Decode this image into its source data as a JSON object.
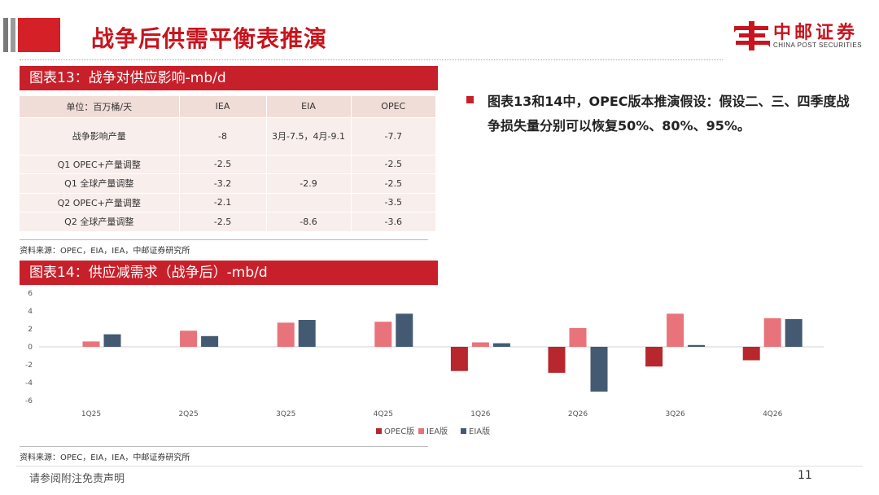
{
  "header": {
    "title": "战争后供需平衡表推演",
    "logo_cn": "中邮证券",
    "logo_en": "CHINA POST SECURITIES"
  },
  "table13": {
    "title": "图表13：战争对供应影响-mb/d",
    "columns": [
      "单位：百万桶/天",
      "IEA",
      "EIA",
      "OPEC"
    ],
    "rows": [
      [
        "战争影响产量",
        "-8",
        "3月-7.5，4月-9.1",
        "-7.7"
      ],
      [
        "Q1 OPEC+产量调整",
        "-2.5",
        "",
        "-2.5"
      ],
      [
        "Q1 全球产量调整",
        "-3.2",
        "-2.9",
        "-2.5"
      ],
      [
        "Q2 OPEC+产量调整",
        "-2.1",
        "",
        "-3.5"
      ],
      [
        "Q2 全球产量调整",
        "-2.5",
        "-8.6",
        "-3.6"
      ]
    ],
    "source": "资料来源：OPEC，EIA，IEA，中邮证券研究所"
  },
  "bullet": {
    "text": "图表13和14中，OPEC版本推演假设：假设二、三、四季度战争损失量分别可以恢复50%、80%、95%。"
  },
  "chart14": {
    "title": "图表14：供应减需求（战争后）-mb/d",
    "source": "资料来源：OPEC，EIA，IEA，中邮证券研究所"
  },
  "chart_data": {
    "type": "bar",
    "title": "图表14：供应减需求（战争后）-mb/d",
    "categories": [
      "1Q25",
      "2Q25",
      "3Q25",
      "4Q25",
      "1Q26",
      "2Q26",
      "3Q26",
      "4Q26"
    ],
    "series": [
      {
        "name": "OPEC版",
        "color": "#b8262e",
        "values": [
          null,
          null,
          null,
          null,
          -2.7,
          -2.9,
          -2.2,
          -1.5
        ]
      },
      {
        "name": "IEA版",
        "color": "#e8737a",
        "values": [
          0.6,
          1.8,
          2.7,
          2.8,
          0.5,
          2.1,
          3.7,
          3.2
        ]
      },
      {
        "name": "EIA版",
        "color": "#445a72",
        "values": [
          1.4,
          1.2,
          3.0,
          3.7,
          0.4,
          -5.0,
          0.2,
          3.1
        ]
      }
    ],
    "ylim": [
      -6,
      6
    ],
    "yticks": [
      -6,
      -4,
      -2,
      0,
      2,
      4,
      6
    ],
    "ytick_labels": [
      "-6",
      "-4",
      "-2",
      "0",
      "2",
      "4",
      "6"
    ],
    "legend": "bottom",
    "grid": false
  },
  "footer": {
    "disclaimer": "请参阅附注免责声明",
    "page": "11"
  },
  "colors": {
    "brand_red": "#c8202a"
  }
}
